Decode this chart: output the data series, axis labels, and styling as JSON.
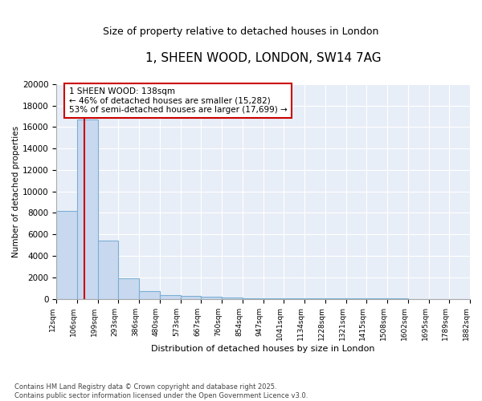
{
  "title": "1, SHEEN WOOD, LONDON, SW14 7AG",
  "subtitle": "Size of property relative to detached houses in London",
  "xlabel": "Distribution of detached houses by size in London",
  "ylabel": "Number of detached properties",
  "footer_line1": "Contains HM Land Registry data © Crown copyright and database right 2025.",
  "footer_line2": "Contains public sector information licensed under the Open Government Licence v3.0.",
  "bin_labels": [
    "12sqm",
    "106sqm",
    "199sqm",
    "293sqm",
    "386sqm",
    "480sqm",
    "573sqm",
    "667sqm",
    "760sqm",
    "854sqm",
    "947sqm",
    "1041sqm",
    "1134sqm",
    "1228sqm",
    "1321sqm",
    "1415sqm",
    "1508sqm",
    "1602sqm",
    "1695sqm",
    "1789sqm",
    "1882sqm"
  ],
  "bar_heights": [
    8200,
    16700,
    5400,
    1900,
    750,
    350,
    250,
    170,
    100,
    70,
    50,
    35,
    25,
    18,
    12,
    10,
    8,
    6,
    5,
    4
  ],
  "bar_color": "#c8d9ef",
  "bar_edge_color": "#7bafd4",
  "plot_bg_color": "#e8eef7",
  "grid_color": "#ffffff",
  "vline_color": "#cc0000",
  "vline_x_index": 1.0,
  "annotation_text": "1 SHEEN WOOD: 138sqm\n← 46% of detached houses are smaller (15,282)\n53% of semi-detached houses are larger (17,699) →",
  "annotation_box_color": "#cc0000",
  "annotation_bg_color": "#ffffff",
  "ylim": [
    0,
    20000
  ],
  "yticks": [
    0,
    2000,
    4000,
    6000,
    8000,
    10000,
    12000,
    14000,
    16000,
    18000,
    20000
  ]
}
